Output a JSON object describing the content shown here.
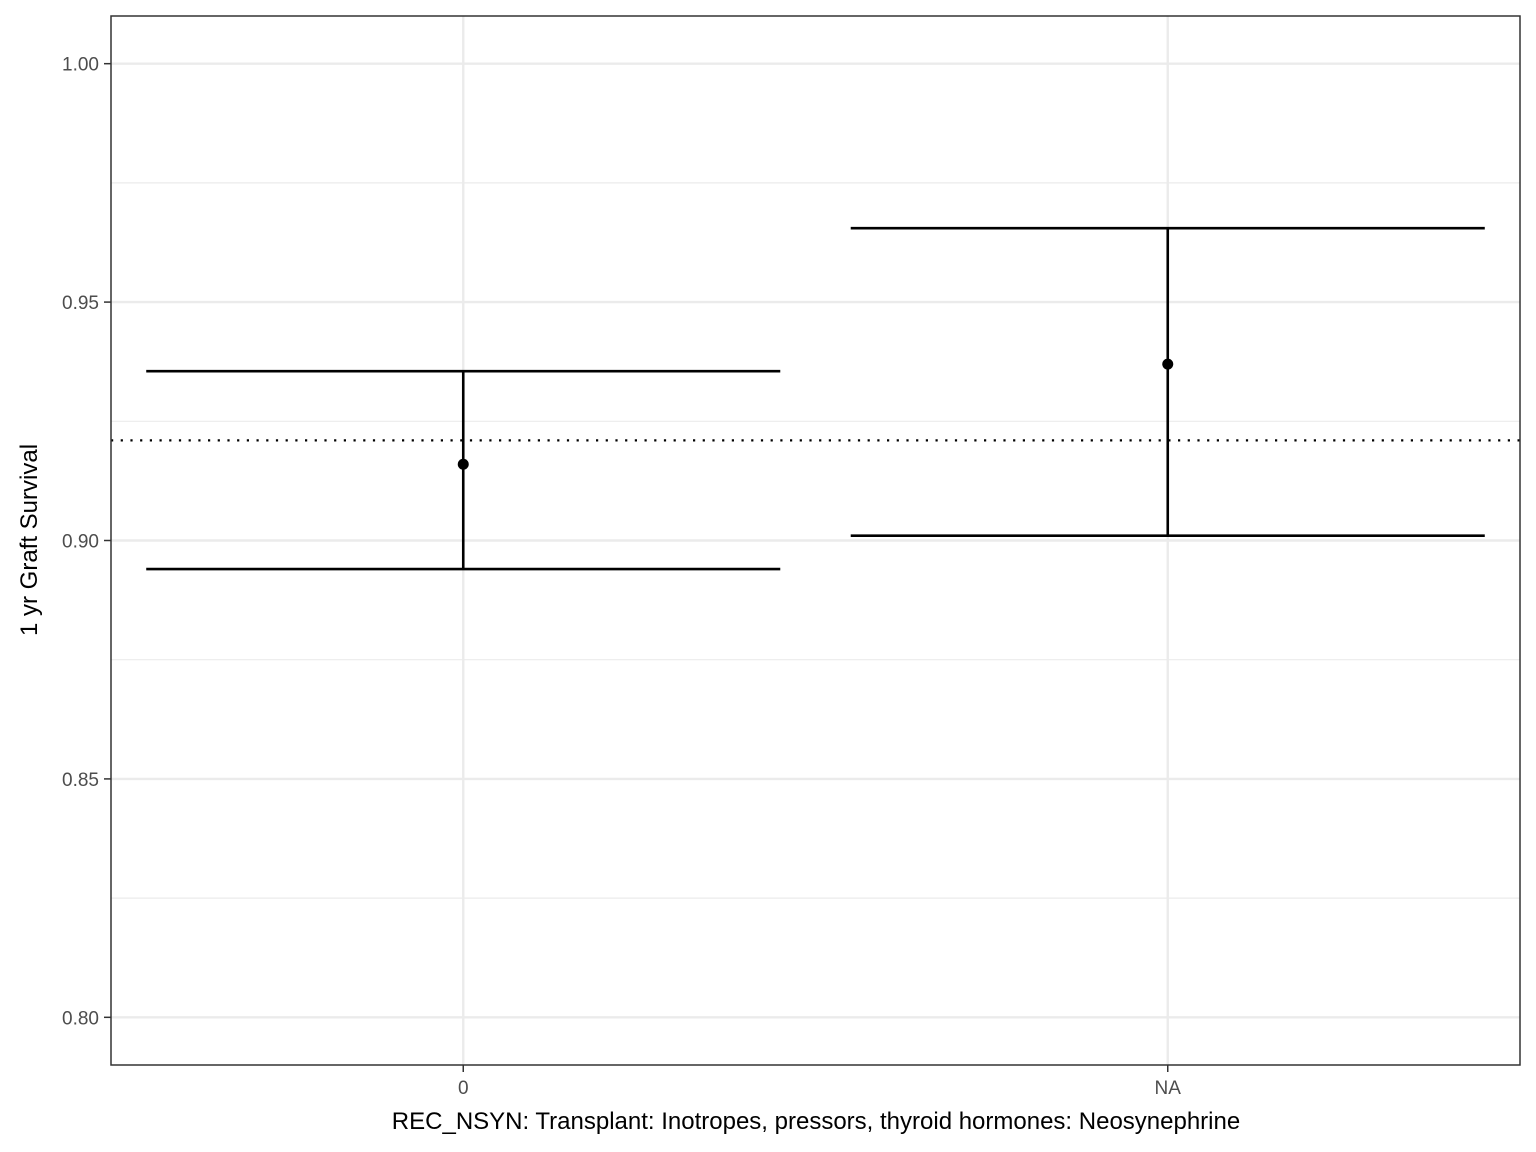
{
  "chart_data": {
    "type": "scatter",
    "title": "",
    "xlabel": "REC_NSYN: Transplant: Inotropes, pressors, thyroid hormones: Neosynephrine",
    "ylabel": "1 yr Graft Survival",
    "categories": [
      "0",
      "NA"
    ],
    "points": [
      {
        "category": "0",
        "estimate": 0.916,
        "lower": 0.894,
        "upper": 0.9355
      },
      {
        "category": "NA",
        "estimate": 0.937,
        "lower": 0.901,
        "upper": 0.9655
      }
    ],
    "reference_line": {
      "value": 0.921,
      "style": "dotted"
    },
    "ylim": [
      0.79,
      1.01
    ],
    "y_ticks": [
      0.8,
      0.85,
      0.9,
      0.95,
      1.0
    ],
    "y_tick_labels": [
      "0.80",
      "0.85",
      "0.90",
      "0.95",
      "1.00"
    ],
    "grid": true,
    "legend": "none",
    "colors": {
      "points": "#000000",
      "grid": "#ebebeb",
      "panel_border": "#333333",
      "background": "#ffffff"
    }
  }
}
